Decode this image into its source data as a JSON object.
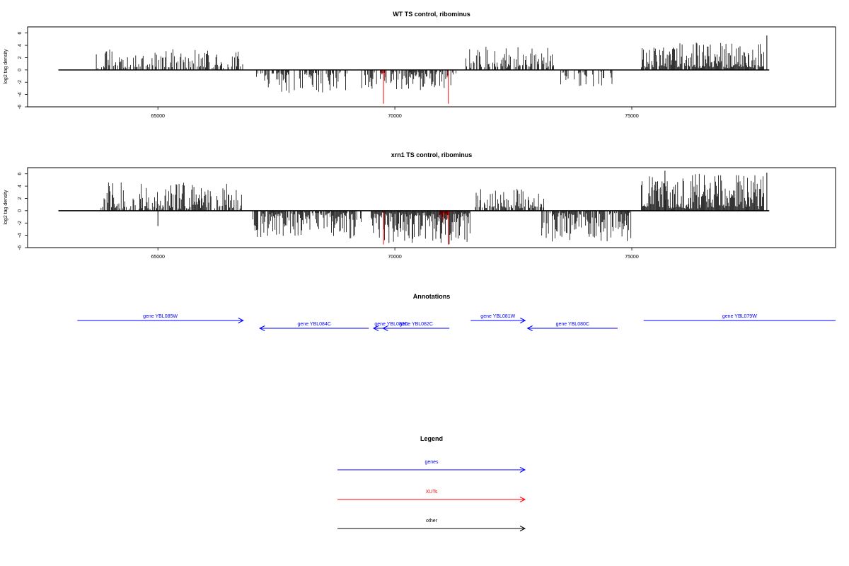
{
  "chart_data": [
    {
      "type": "bar",
      "title": "WT TS control, ribominus",
      "xlabel": "",
      "ylabel": "log2 tag density",
      "xlim": [
        62250,
        79300
      ],
      "ylim": [
        -6,
        7
      ],
      "xticks": [
        65000,
        70000,
        75000
      ],
      "yticks": [
        -6,
        -4,
        -2,
        0,
        2,
        4,
        6
      ],
      "baseline": {
        "x_start": 62900,
        "x_end": 77900,
        "y": 0
      },
      "segments": [
        {
          "strand": "+",
          "x_start": 63700,
          "x_end": 66800,
          "max_abs": 3.4,
          "density": 0.55,
          "stroke": "#000000"
        },
        {
          "strand": "-",
          "x_start": 67000,
          "x_end": 69000,
          "max_abs": 3.8,
          "density": 0.45,
          "stroke": "#000000"
        },
        {
          "strand": "-",
          "x_start": 69300,
          "x_end": 71300,
          "max_abs": 3.5,
          "density": 0.6,
          "stroke": "#000000"
        },
        {
          "strand": "-",
          "x_start": 69700,
          "x_end": 69800,
          "max_abs": 1.8,
          "density": 1.0,
          "stroke": "#8b0000"
        },
        {
          "strand": "+",
          "x_start": 71500,
          "x_end": 73350,
          "max_abs": 3.8,
          "density": 0.5,
          "stroke": "#000000"
        },
        {
          "strand": "-",
          "x_start": 73500,
          "x_end": 74600,
          "max_abs": 2.8,
          "density": 0.45,
          "stroke": "#000000"
        },
        {
          "strand": "+",
          "x_start": 75200,
          "x_end": 77800,
          "max_abs": 4.5,
          "density": 0.9,
          "stroke": "#000000"
        }
      ],
      "spikes": [
        {
          "x": 77850,
          "value": 5.6,
          "color": "#000000"
        },
        {
          "x": 69760,
          "value": -5.5,
          "color": "#ff0000"
        },
        {
          "x": 71130,
          "value": -5.5,
          "color": "#ff0000"
        }
      ]
    },
    {
      "type": "bar",
      "title": "xrn1 TS control, ribominus",
      "xlabel": "",
      "ylabel": "log2 tag density",
      "xlim": [
        62250,
        79300
      ],
      "ylim": [
        -6,
        7
      ],
      "xticks": [
        65000,
        70000,
        75000
      ],
      "yticks": [
        -6,
        -4,
        -2,
        0,
        2,
        4,
        6
      ],
      "baseline": {
        "x_start": 62900,
        "x_end": 77900,
        "y": 0
      },
      "segments": [
        {
          "strand": "+",
          "x_start": 63800,
          "x_end": 66800,
          "max_abs": 4.6,
          "density": 0.7,
          "stroke": "#000000"
        },
        {
          "strand": "-",
          "x_start": 67000,
          "x_end": 69300,
          "max_abs": 4.5,
          "density": 0.8,
          "stroke": "#000000"
        },
        {
          "strand": "-",
          "x_start": 69500,
          "x_end": 71600,
          "max_abs": 5.5,
          "density": 1.0,
          "stroke": "#000000"
        },
        {
          "strand": "-",
          "x_start": 70950,
          "x_end": 71150,
          "max_abs": 2.0,
          "density": 1.0,
          "stroke": "#8b0000"
        },
        {
          "strand": "+",
          "x_start": 71700,
          "x_end": 73150,
          "max_abs": 3.6,
          "density": 0.7,
          "stroke": "#000000"
        },
        {
          "strand": "-",
          "x_start": 73100,
          "x_end": 75000,
          "max_abs": 5.0,
          "density": 0.8,
          "stroke": "#000000"
        },
        {
          "strand": "+",
          "x_start": 75200,
          "x_end": 77800,
          "max_abs": 6.0,
          "density": 1.0,
          "stroke": "#000000"
        }
      ],
      "spikes": [
        {
          "x": 65000,
          "value": -2.5,
          "color": "#000000"
        },
        {
          "x": 75700,
          "value": 6.5,
          "color": "#000000"
        },
        {
          "x": 77850,
          "value": 6.2,
          "color": "#000000"
        },
        {
          "x": 69760,
          "value": -5.5,
          "color": "#ff0000"
        },
        {
          "x": 71130,
          "value": -5.5,
          "color": "#ff0000"
        }
      ]
    }
  ],
  "annotations": {
    "title": "Annotations",
    "genes": [
      {
        "label": "gene YBL085W",
        "strand": "+",
        "x_start": 63300,
        "x_end": 66800,
        "row": 0,
        "color": "#0000ff"
      },
      {
        "label": "gene YBL084C",
        "strand": "-",
        "x_start": 67150,
        "x_end": 69450,
        "row": 1,
        "color": "#0000ff"
      },
      {
        "label": "gene YBL083C",
        "strand": "-",
        "x_start": 69550,
        "x_end": 70300,
        "row": 1,
        "color": "#0000ff"
      },
      {
        "label": "gene YBL082C",
        "strand": "-",
        "x_start": 69750,
        "x_end": 71150,
        "row": 1,
        "color": "#0000ff"
      },
      {
        "label": "gene YBL081W",
        "strand": "+",
        "x_start": 71600,
        "x_end": 72750,
        "row": 0,
        "color": "#0000ff"
      },
      {
        "label": "gene YBL080C",
        "strand": "-",
        "x_start": 72800,
        "x_end": 74700,
        "row": 1,
        "color": "#0000ff"
      },
      {
        "label": "gene YBL079W",
        "strand": "+",
        "x_start": 75250,
        "x_end": 79300,
        "row": 0,
        "color": "#0000ff"
      }
    ]
  },
  "legend": {
    "title": "Legend",
    "items": [
      {
        "label": "genes",
        "color": "#0000ff"
      },
      {
        "label": "XUTs",
        "color": "#ff0000"
      },
      {
        "label": "other",
        "color": "#000000"
      }
    ]
  }
}
